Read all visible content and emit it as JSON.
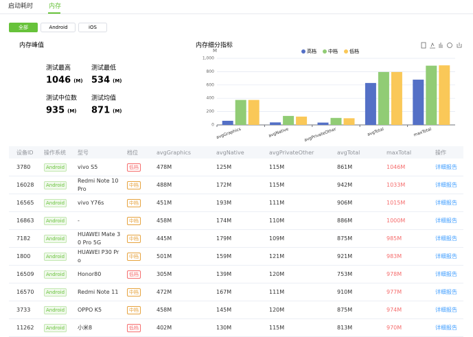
{
  "tabs": [
    "启动耗时",
    "内存"
  ],
  "filters": [
    "全部",
    "Android",
    "iOS"
  ],
  "peak": {
    "title": "内存峰值",
    "unit": "(M)",
    "stats": [
      {
        "label": "测试最高",
        "value": "1046"
      },
      {
        "label": "测试最低",
        "value": "534"
      },
      {
        "label": "测试中位数",
        "value": "935"
      },
      {
        "label": "测试均值",
        "value": "871"
      }
    ]
  },
  "memory_chart": {
    "type": "bar",
    "title": "内存细分指标",
    "y_unit": "M",
    "categories": [
      "avgGraphics",
      "avgNative",
      "avgPrivateOther",
      "avgTotal",
      "maxTotal"
    ],
    "series": [
      {
        "name": "高档",
        "color": "#5470c6",
        "values": [
          62,
          38,
          35,
          630,
          680
        ]
      },
      {
        "name": "中档",
        "color": "#91cc75",
        "values": [
          375,
          135,
          105,
          795,
          890
        ]
      },
      {
        "name": "低档",
        "color": "#fac858",
        "values": [
          375,
          125,
          100,
          795,
          895
        ]
      }
    ],
    "ylim": [
      0,
      1000
    ],
    "yticks": [
      0,
      200,
      400,
      600,
      800,
      {
        "value": 1000,
        "label": "1,000"
      }
    ],
    "grid": true,
    "legend": "top"
  },
  "table": {
    "headers": [
      "设备ID",
      "操作系统",
      "型号",
      "档位",
      "avgGraphics",
      "avgNative",
      "avgPrivateOther",
      "avgTotal",
      "maxTotal",
      "操作"
    ],
    "rows": [
      {
        "cells": [
          "3780",
          "Android",
          "vivo S5",
          "低档",
          "478M",
          "125M",
          "115M",
          "861M",
          "1046M",
          "详细报告"
        ],
        "tier_color": "#f56c6c"
      },
      {
        "cells": [
          "16028",
          "Android",
          "Redmi Note 10 Pro",
          "中档",
          "488M",
          "172M",
          "115M",
          "942M",
          "1033M",
          "详细报告"
        ],
        "tier_color": "#e6a23c"
      },
      {
        "cells": [
          "16565",
          "Android",
          "vivo Y76s",
          "中档",
          "451M",
          "193M",
          "111M",
          "906M",
          "1015M",
          "详细报告"
        ],
        "tier_color": "#e6a23c"
      },
      {
        "cells": [
          "16863",
          "Android",
          "-",
          "中档",
          "458M",
          "174M",
          "110M",
          "886M",
          "1000M",
          "详细报告"
        ],
        "tier_color": "#e6a23c"
      },
      {
        "cells": [
          "7182",
          "Android",
          "HUAWEI Mate 30 Pro 5G",
          "中档",
          "445M",
          "179M",
          "109M",
          "875M",
          "985M",
          "详细报告"
        ],
        "tier_color": "#e6a23c"
      },
      {
        "cells": [
          "1800",
          "Android",
          "HUAWEI P30 Pro",
          "中档",
          "501M",
          "159M",
          "121M",
          "921M",
          "983M",
          "详细报告"
        ],
        "tier_color": "#e6a23c"
      },
      {
        "cells": [
          "16509",
          "Android",
          "Honor80",
          "低档",
          "305M",
          "139M",
          "120M",
          "753M",
          "978M",
          "详细报告"
        ],
        "tier_color": "#f56c6c"
      },
      {
        "cells": [
          "16570",
          "Android",
          "Redmi Note 11",
          "中档",
          "472M",
          "167M",
          "111M",
          "910M",
          "977M",
          "详细报告"
        ],
        "tier_color": "#e6a23c"
      },
      {
        "cells": [
          "3733",
          "Android",
          "OPPO K5",
          "中档",
          "458M",
          "145M",
          "120M",
          "875M",
          "974M",
          "详细报告"
        ],
        "tier_color": "#e6a23c"
      },
      {
        "cells": [
          "11262",
          "Android",
          "小米8",
          "低档",
          "402M",
          "130M",
          "115M",
          "813M",
          "970M",
          "详细报告"
        ],
        "tier_color": "#f56c6c"
      }
    ]
  }
}
